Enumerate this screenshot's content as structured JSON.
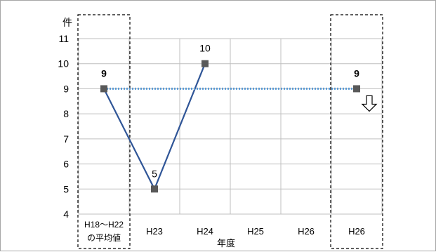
{
  "chart_data": {
    "type": "line",
    "categories": [
      "H18～H22\nの平均値",
      "H23",
      "H24",
      "H25",
      "H26",
      "H26"
    ],
    "category_lines": [
      [
        "H18～H22",
        "の平均値"
      ],
      [
        "H23"
      ],
      [
        "H24"
      ],
      [
        "H25"
      ],
      [
        "H26"
      ],
      [
        "H26"
      ]
    ],
    "y_unit_label": "件",
    "xlabel": "年度",
    "ylim": [
      4,
      11
    ],
    "yticks": [
      4,
      5,
      6,
      7,
      8,
      9,
      10,
      11
    ],
    "grid": true,
    "series": [
      {
        "values": [
          9,
          5,
          10,
          null,
          null,
          null
        ],
        "color": "#2f5597",
        "style": "solid",
        "marker": "square"
      },
      {
        "values": [
          9,
          null,
          null,
          null,
          null,
          9
        ],
        "color": "#5b9bd5",
        "style": "dotted",
        "marker": "square"
      }
    ],
    "data_labels": [
      {
        "index": 0,
        "value": 9,
        "text": "9",
        "bold": true,
        "position": "above"
      },
      {
        "index": 1,
        "value": 5,
        "text": "5",
        "bold": false,
        "position": "above"
      },
      {
        "index": 2,
        "value": 10,
        "text": "10",
        "bold": false,
        "position": "above"
      },
      {
        "index": 5,
        "value": 9,
        "text": "9",
        "bold": true,
        "position": "above"
      }
    ],
    "highlighted_categories": [
      0,
      5
    ],
    "annotation": {
      "index": 5,
      "symbol": "down-arrow",
      "meaning": "target decrease"
    },
    "marker_color": "#595959"
  }
}
